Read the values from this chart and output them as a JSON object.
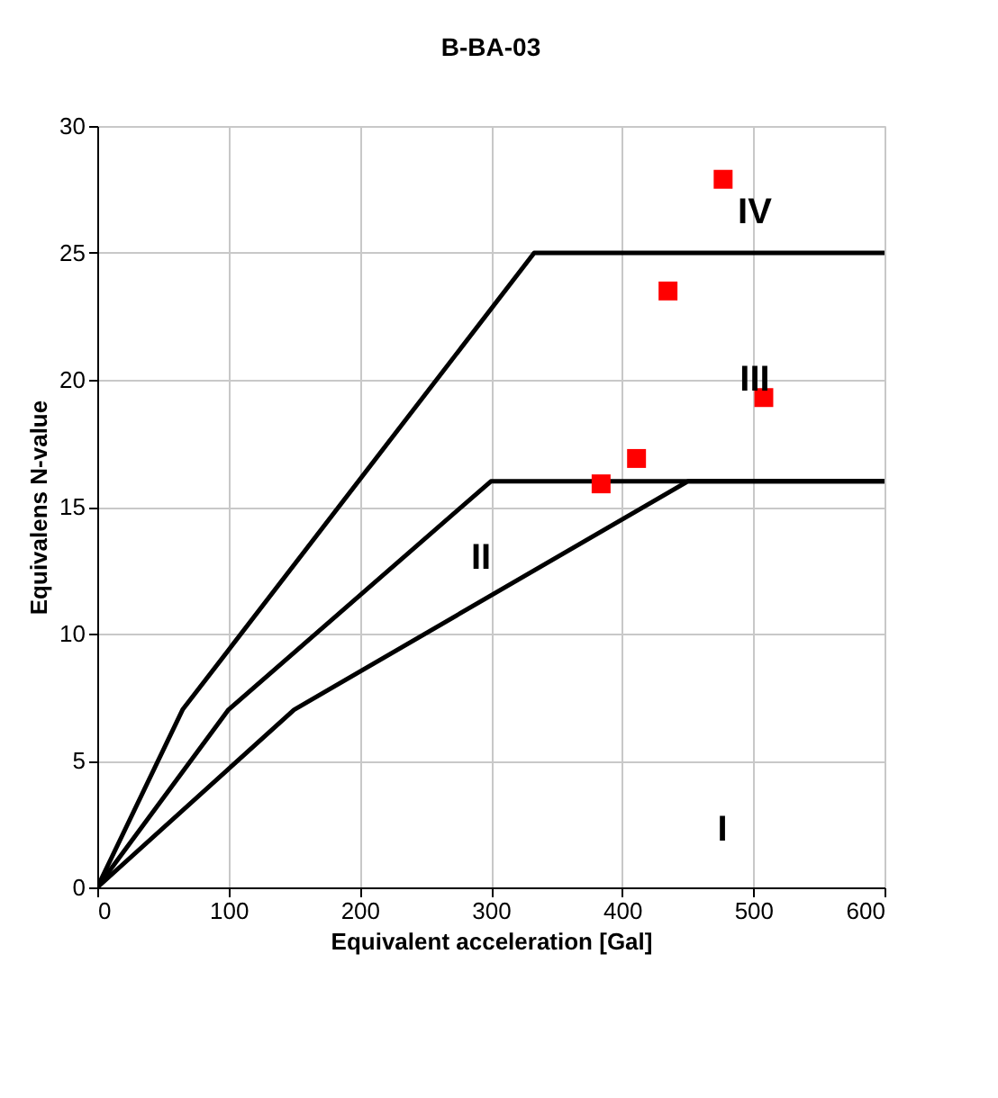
{
  "chart_data": {
    "type": "line",
    "title": "B-BA-03",
    "xlabel": "Equivalent acceleration [Gal]",
    "ylabel": "Equivalens N-value",
    "series": [
      {
        "color": "#000000",
        "x": [
          0,
          65,
          333,
          600
        ],
        "values": [
          0,
          7,
          25,
          25
        ]
      },
      {
        "color": "#000000",
        "x": [
          0,
          100,
          300,
          600
        ],
        "values": [
          0,
          7,
          16,
          16
        ]
      },
      {
        "color": "#000000",
        "x": [
          0,
          150,
          450,
          600
        ],
        "values": [
          0,
          7,
          16,
          16
        ]
      },
      {
        "type": "scatter",
        "color": "#ff0000",
        "x": [
          477,
          435,
          508,
          411,
          384
        ],
        "values": [
          27.9,
          23.5,
          19.3,
          16.9,
          15.9
        ],
        "marker": "square"
      }
    ],
    "annotations": [
      "IV",
      "III",
      "II",
      "I"
    ],
    "xlim": [
      0,
      600
    ],
    "xticks": [
      0,
      100,
      200,
      300,
      400,
      500,
      600
    ],
    "ylim": [
      0,
      30
    ],
    "yticks": [
      0,
      5,
      10,
      15,
      20,
      25,
      30
    ],
    "grid": true
  }
}
